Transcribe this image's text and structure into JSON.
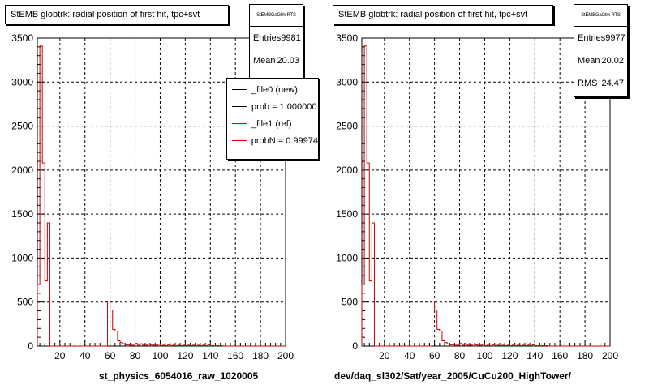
{
  "chart_data": [
    {
      "type": "histogram",
      "title": "StEMB globtrk: radial position of first hit, tpc+svt",
      "xlabel": "st_physics_6054016_raw_1020005",
      "xlim": [
        2,
        200
      ],
      "ylim": [
        0,
        3500
      ],
      "grid": true,
      "xticks": [
        "20",
        "40",
        "60",
        "80",
        "100",
        "120",
        "140",
        "160",
        "180",
        "200"
      ],
      "yticks": [
        "0",
        "500",
        "1000",
        "1500",
        "2000",
        "2500",
        "3000",
        "3500"
      ],
      "stats": {
        "header": "StEMBGaGtrk RTS",
        "rows": [
          {
            "label": "Entries",
            "value": "9981"
          },
          {
            "label": "Mean",
            "value": "20.03"
          }
        ]
      },
      "legend": {
        "position": "top-right",
        "entries": [
          {
            "label": "_file0 (new)",
            "color": "#000000"
          },
          {
            "label": "prob = 1.000000",
            "color": "#000000"
          },
          {
            "label": "_file1 (ref)",
            "color": "#cc0000"
          },
          {
            "label": "probN = 0.99974",
            "color": "#cc0000"
          }
        ]
      },
      "series": [
        {
          "color": "#cc0000",
          "bins": [
            [
              2,
              4,
              700
            ],
            [
              4,
              6,
              3410
            ],
            [
              6,
              8,
              2080
            ],
            [
              8,
              10,
              740
            ],
            [
              10,
              12,
              1400
            ],
            [
              12,
              14,
              0
            ],
            [
              58,
              60,
              510
            ],
            [
              60,
              62,
              410
            ],
            [
              62,
              64,
              190
            ],
            [
              64,
              66,
              170
            ],
            [
              66,
              68,
              60
            ],
            [
              68,
              70,
              40
            ],
            [
              70,
              72,
              25
            ],
            [
              72,
              74,
              15
            ],
            [
              74,
              76,
              15
            ],
            [
              76,
              78,
              10
            ],
            [
              78,
              80,
              10
            ],
            [
              80,
              82,
              30
            ],
            [
              82,
              84,
              10
            ],
            [
              84,
              86,
              25
            ],
            [
              86,
              88,
              10
            ],
            [
              88,
              90,
              10
            ],
            [
              90,
              92,
              20
            ],
            [
              92,
              94,
              15
            ],
            [
              94,
              96,
              10
            ],
            [
              96,
              98,
              10
            ],
            [
              98,
              100,
              20
            ],
            [
              100,
              102,
              5
            ],
            [
              102,
              104,
              10
            ],
            [
              104,
              106,
              5
            ],
            [
              106,
              108,
              15
            ],
            [
              108,
              110,
              5
            ],
            [
              110,
              112,
              10
            ],
            [
              112,
              114,
              5
            ],
            [
              114,
              116,
              10
            ],
            [
              116,
              118,
              5
            ],
            [
              118,
              120,
              10
            ],
            [
              120,
              122,
              5
            ],
            [
              122,
              124,
              10
            ],
            [
              124,
              126,
              5
            ],
            [
              126,
              128,
              10
            ],
            [
              128,
              130,
              5
            ],
            [
              130,
              132,
              10
            ],
            [
              132,
              134,
              5
            ],
            [
              134,
              136,
              10
            ],
            [
              136,
              138,
              5
            ],
            [
              138,
              140,
              15
            ],
            [
              140,
              142,
              5
            ],
            [
              142,
              144,
              5
            ],
            [
              144,
              146,
              5
            ],
            [
              146,
              148,
              5
            ],
            [
              148,
              150,
              5
            ]
          ]
        }
      ]
    },
    {
      "type": "histogram",
      "title": "StEMB globtrk: radial position of first hit, tpc+svt",
      "xlabel": "dev/daq_sl302/Sat/year_2005/CuCu200_HighTower/",
      "xlim": [
        2,
        200
      ],
      "ylim": [
        0,
        3500
      ],
      "grid": true,
      "xticks": [
        "20",
        "40",
        "60",
        "80",
        "100",
        "120",
        "140",
        "160",
        "180",
        "200"
      ],
      "yticks": [
        "0",
        "500",
        "1000",
        "1500",
        "2000",
        "2500",
        "3000",
        "3500"
      ],
      "stats": {
        "header": "StEMBGaGtrk RTS",
        "rows": [
          {
            "label": "Entries",
            "value": "9977"
          },
          {
            "label": "Mean",
            "value": "20.02"
          },
          {
            "label": "RMS",
            "value": "24.47"
          }
        ]
      },
      "series": [
        {
          "color": "#cc0000",
          "bins": [
            [
              2,
              4,
              700
            ],
            [
              4,
              6,
              3410
            ],
            [
              6,
              8,
              2080
            ],
            [
              8,
              10,
              740
            ],
            [
              10,
              12,
              1400
            ],
            [
              12,
              14,
              0
            ],
            [
              58,
              60,
              510
            ],
            [
              60,
              62,
              410
            ],
            [
              62,
              64,
              190
            ],
            [
              64,
              66,
              170
            ],
            [
              66,
              68,
              60
            ],
            [
              68,
              70,
              40
            ],
            [
              70,
              72,
              25
            ],
            [
              72,
              74,
              15
            ],
            [
              74,
              76,
              15
            ],
            [
              76,
              78,
              10
            ],
            [
              78,
              80,
              10
            ],
            [
              80,
              82,
              30
            ],
            [
              82,
              84,
              10
            ],
            [
              84,
              86,
              25
            ],
            [
              86,
              88,
              10
            ],
            [
              88,
              90,
              10
            ],
            [
              90,
              92,
              20
            ],
            [
              92,
              94,
              15
            ],
            [
              94,
              96,
              10
            ],
            [
              96,
              98,
              10
            ],
            [
              98,
              100,
              20
            ],
            [
              100,
              102,
              5
            ],
            [
              102,
              104,
              10
            ],
            [
              104,
              106,
              5
            ],
            [
              106,
              108,
              15
            ],
            [
              108,
              110,
              5
            ],
            [
              110,
              112,
              10
            ],
            [
              112,
              114,
              5
            ],
            [
              114,
              116,
              10
            ],
            [
              116,
              118,
              5
            ],
            [
              118,
              120,
              10
            ],
            [
              120,
              122,
              5
            ],
            [
              122,
              124,
              10
            ],
            [
              124,
              126,
              5
            ],
            [
              126,
              128,
              10
            ],
            [
              128,
              130,
              5
            ],
            [
              130,
              132,
              10
            ],
            [
              132,
              134,
              5
            ],
            [
              134,
              136,
              10
            ],
            [
              136,
              138,
              5
            ],
            [
              138,
              140,
              15
            ],
            [
              140,
              142,
              5
            ],
            [
              142,
              144,
              5
            ],
            [
              144,
              146,
              5
            ],
            [
              146,
              148,
              5
            ],
            [
              148,
              150,
              5
            ]
          ]
        }
      ]
    }
  ]
}
